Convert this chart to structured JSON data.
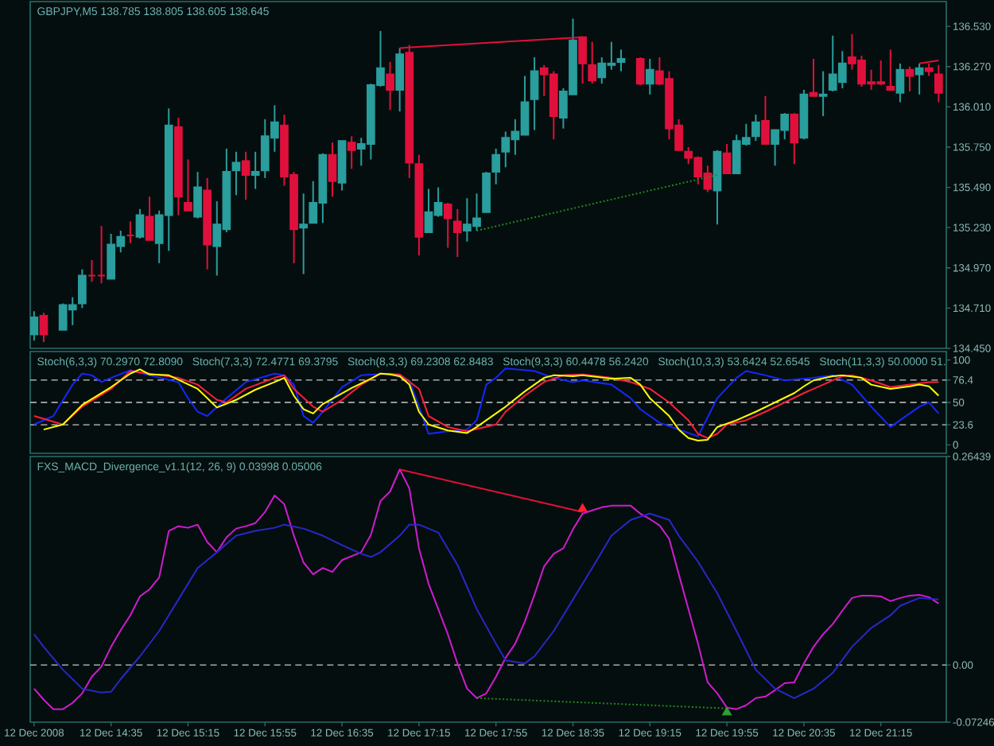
{
  "chart_data": [
    {
      "type": "candlestick",
      "title": "GBPJPY,M5 138.785 138.805 138.605 138.645",
      "x": [
        "2008-12-12T13:55",
        "2008-12-12T14:00",
        "2008-12-12T14:10",
        "2008-12-12T14:15",
        "2008-12-12T14:20",
        "2008-12-12T14:25",
        "2008-12-12T14:30",
        "2008-12-12T14:35",
        "2008-12-12T14:40",
        "2008-12-12T14:45",
        "2008-12-12T14:50",
        "2008-12-12T14:55",
        "2008-12-12T15:00",
        "2008-12-12T15:05",
        "2008-12-12T15:10",
        "2008-12-12T15:15",
        "2008-12-12T15:20",
        "2008-12-12T15:25",
        "2008-12-12T15:30",
        "2008-12-12T15:35",
        "2008-12-12T15:40",
        "2008-12-12T15:45",
        "2008-12-12T15:50",
        "2008-12-12T15:55",
        "2008-12-12T16:00",
        "2008-12-12T16:05",
        "2008-12-12T16:10",
        "2008-12-12T16:15",
        "2008-12-12T16:20",
        "2008-12-12T16:25",
        "2008-12-12T16:30",
        "2008-12-12T16:35",
        "2008-12-12T16:40",
        "2008-12-12T16:45",
        "2008-12-12T16:50",
        "2008-12-12T16:55",
        "2008-12-12T17:00",
        "2008-12-12T17:05",
        "2008-12-12T17:10",
        "2008-12-12T17:15",
        "2008-12-12T17:20",
        "2008-12-12T17:25",
        "2008-12-12T17:30",
        "2008-12-12T17:35",
        "2008-12-12T17:40",
        "2008-12-12T17:45",
        "2008-12-12T17:50",
        "2008-12-12T17:55",
        "2008-12-12T18:00",
        "2008-12-12T18:05",
        "2008-12-12T18:10",
        "2008-12-12T18:15",
        "2008-12-12T18:20",
        "2008-12-12T18:25",
        "2008-12-12T18:30",
        "2008-12-12T18:35",
        "2008-12-12T18:40",
        "2008-12-12T18:45",
        "2008-12-12T18:50",
        "2008-12-12T18:55",
        "2008-12-12T19:00",
        "2008-12-12T19:10",
        "2008-12-12T19:15",
        "2008-12-12T19:20",
        "2008-12-12T19:25",
        "2008-12-12T19:30",
        "2008-12-12T19:35",
        "2008-12-12T19:40",
        "2008-12-12T19:45",
        "2008-12-12T19:50",
        "2008-12-12T19:55",
        "2008-12-12T20:00",
        "2008-12-12T20:05",
        "2008-12-12T20:10",
        "2008-12-12T20:15",
        "2008-12-12T20:20",
        "2008-12-12T20:25",
        "2008-12-12T20:30",
        "2008-12-12T20:35",
        "2008-12-12T20:40",
        "2008-12-12T20:45",
        "2008-12-12T20:50",
        "2008-12-12T20:55",
        "2008-12-12T21:00",
        "2008-12-12T21:05",
        "2008-12-12T21:10",
        "2008-12-12T21:15",
        "2008-12-12T21:20",
        "2008-12-12T21:25",
        "2008-12-12T21:30",
        "2008-12-12T21:35",
        "2008-12-12T21:40",
        "2008-12-12T21:45"
      ],
      "ohlc": [
        [
          134.54,
          134.69,
          134.5,
          134.65
        ],
        [
          134.66,
          134.68,
          134.49,
          134.54
        ],
        [
          134.57,
          134.74,
          134.57,
          134.73
        ],
        [
          134.7,
          134.78,
          134.6,
          134.73
        ],
        [
          134.74,
          134.96,
          134.71,
          134.92
        ],
        [
          134.92,
          135.02,
          134.88,
          134.92
        ],
        [
          134.92,
          135.24,
          134.87,
          134.92
        ],
        [
          134.9,
          135.19,
          134.9,
          135.12
        ],
        [
          135.11,
          135.21,
          135.07,
          135.17
        ],
        [
          135.18,
          135.27,
          135.13,
          135.18
        ],
        [
          135.17,
          135.35,
          135.16,
          135.31
        ],
        [
          135.3,
          135.43,
          135.15,
          135.15
        ],
        [
          135.13,
          135.34,
          135.0,
          135.31
        ],
        [
          135.31,
          136.0,
          135.08,
          135.89
        ],
        [
          135.88,
          135.94,
          135.31,
          135.43
        ],
        [
          135.39,
          135.67,
          135.34,
          135.34
        ],
        [
          135.3,
          135.59,
          135.29,
          135.49
        ],
        [
          135.47,
          135.55,
          134.96,
          135.12
        ],
        [
          135.11,
          135.4,
          134.92,
          135.25
        ],
        [
          135.22,
          135.74,
          135.2,
          135.59
        ],
        [
          135.6,
          135.72,
          135.44,
          135.65
        ],
        [
          135.66,
          135.72,
          135.41,
          135.57
        ],
        [
          135.57,
          135.72,
          135.48,
          135.59
        ],
        [
          135.6,
          135.93,
          135.55,
          135.82
        ],
        [
          135.81,
          136.02,
          135.72,
          135.91
        ],
        [
          135.89,
          135.96,
          135.5,
          135.56
        ],
        [
          135.57,
          135.59,
          135.0,
          135.22
        ],
        [
          135.23,
          135.45,
          134.93,
          135.25
        ],
        [
          135.26,
          135.53,
          135.26,
          135.39
        ],
        [
          135.39,
          135.71,
          135.26,
          135.7
        ],
        [
          135.7,
          135.78,
          135.43,
          135.53
        ],
        [
          135.52,
          135.79,
          135.47,
          135.79
        ],
        [
          135.78,
          135.82,
          135.61,
          135.73
        ],
        [
          135.74,
          135.81,
          135.63,
          135.77
        ],
        [
          135.77,
          136.16,
          135.67,
          136.15
        ],
        [
          136.15,
          136.5,
          136.14,
          136.26
        ],
        [
          136.22,
          136.3,
          135.99,
          136.12
        ],
        [
          136.12,
          136.39,
          135.98,
          136.35
        ],
        [
          136.36,
          136.41,
          135.55,
          135.65
        ],
        [
          135.64,
          135.7,
          135.05,
          135.17
        ],
        [
          135.2,
          135.48,
          135.2,
          135.33
        ],
        [
          135.31,
          135.49,
          135.3,
          135.39
        ],
        [
          135.38,
          135.39,
          135.1,
          135.29
        ],
        [
          135.27,
          135.35,
          135.04,
          135.2
        ],
        [
          135.21,
          135.42,
          135.14,
          135.25
        ],
        [
          135.24,
          135.45,
          135.21,
          135.29
        ],
        [
          135.33,
          135.59,
          135.33,
          135.58
        ],
        [
          135.59,
          135.74,
          135.51,
          135.7
        ],
        [
          135.72,
          135.85,
          135.62,
          135.81
        ],
        [
          135.8,
          135.93,
          135.7,
          135.85
        ],
        [
          135.83,
          136.21,
          135.83,
          136.04
        ],
        [
          136.06,
          136.33,
          135.86,
          136.24
        ],
        [
          136.26,
          136.28,
          136.08,
          136.22
        ],
        [
          136.22,
          136.24,
          135.8,
          135.95
        ],
        [
          135.94,
          136.13,
          135.87,
          136.11
        ],
        [
          136.09,
          136.58,
          136.09,
          136.44
        ],
        [
          136.46,
          136.46,
          136.16,
          136.29
        ],
        [
          136.28,
          136.43,
          136.16,
          136.18
        ],
        [
          136.2,
          136.33,
          136.16,
          136.29
        ],
        [
          136.28,
          136.43,
          136.25,
          136.29
        ],
        [
          136.3,
          136.38,
          136.24,
          136.32
        ],
        [
          136.32,
          136.33,
          136.15,
          136.16
        ],
        [
          136.16,
          136.32,
          136.09,
          136.25
        ],
        [
          136.24,
          136.33,
          136.15,
          136.16
        ],
        [
          136.19,
          136.24,
          135.8,
          135.87
        ],
        [
          135.89,
          135.93,
          135.73,
          135.73
        ],
        [
          135.72,
          135.75,
          135.64,
          135.68
        ],
        [
          135.68,
          135.69,
          135.51,
          135.56
        ],
        [
          135.58,
          135.63,
          135.46,
          135.48
        ],
        [
          135.47,
          135.73,
          135.25,
          135.72
        ],
        [
          135.71,
          135.77,
          135.58,
          135.58
        ],
        [
          135.58,
          135.83,
          135.58,
          135.79
        ],
        [
          135.77,
          135.9,
          135.76,
          135.81
        ],
        [
          135.82,
          135.96,
          135.79,
          135.91
        ],
        [
          135.92,
          136.08,
          135.77,
          135.77
        ],
        [
          135.77,
          135.86,
          135.63,
          135.86
        ],
        [
          135.86,
          135.97,
          135.8,
          135.96
        ],
        [
          135.96,
          135.97,
          135.64,
          135.78
        ],
        [
          135.81,
          136.12,
          135.8,
          136.09
        ],
        [
          136.1,
          136.32,
          136.08,
          136.08
        ],
        [
          136.08,
          136.24,
          135.95,
          136.09
        ],
        [
          136.12,
          136.47,
          136.11,
          136.22
        ],
        [
          136.17,
          136.37,
          136.13,
          136.29
        ],
        [
          136.33,
          136.48,
          136.25,
          136.29
        ],
        [
          136.31,
          136.34,
          136.14,
          136.16
        ],
        [
          136.17,
          136.25,
          136.12,
          136.16
        ],
        [
          136.17,
          136.31,
          136.15,
          136.16
        ],
        [
          136.14,
          136.38,
          136.12,
          136.12
        ],
        [
          136.1,
          136.29,
          136.04,
          136.25
        ],
        [
          136.25,
          136.27,
          136.11,
          136.21
        ],
        [
          136.22,
          136.29,
          136.09,
          136.26
        ],
        [
          136.26,
          136.29,
          136.21,
          136.24
        ],
        [
          136.22,
          136.28,
          136.04,
          136.1
        ]
      ],
      "colors": [
        "#2a9d9d",
        "#e0103c",
        "#2a9d9d",
        "#2a9d9d",
        "#2a9d9d",
        "#e0103c",
        "#e0103c",
        "#2a9d9d",
        "#2a9d9d",
        "#e0103c",
        "#2a9d9d",
        "#e0103c",
        "#2a9d9d",
        "#2a9d9d",
        "#e0103c",
        "#e0103c",
        "#2a9d9d",
        "#e0103c",
        "#2a9d9d",
        "#2a9d9d",
        "#2a9d9d",
        "#e0103c",
        "#2a9d9d",
        "#2a9d9d",
        "#2a9d9d",
        "#e0103c",
        "#e0103c",
        "#2a9d9d",
        "#2a9d9d",
        "#2a9d9d",
        "#e0103c",
        "#2a9d9d",
        "#e0103c",
        "#2a9d9d",
        "#2a9d9d",
        "#2a9d9d",
        "#e0103c",
        "#2a9d9d",
        "#e0103c",
        "#e0103c",
        "#2a9d9d",
        "#2a9d9d",
        "#e0103c",
        "#e0103c",
        "#2a9d9d",
        "#2a9d9d",
        "#2a9d9d",
        "#2a9d9d",
        "#2a9d9d",
        "#2a9d9d",
        "#2a9d9d",
        "#2a9d9d",
        "#e0103c",
        "#e0103c",
        "#2a9d9d",
        "#2a9d9d",
        "#e0103c",
        "#e0103c",
        "#2a9d9d",
        "#2a9d9d",
        "#2a9d9d",
        "#e0103c",
        "#2a9d9d",
        "#e0103c",
        "#e0103c",
        "#e0103c",
        "#e0103c",
        "#e0103c",
        "#e0103c",
        "#2a9d9d",
        "#e0103c",
        "#2a9d9d",
        "#2a9d9d",
        "#2a9d9d",
        "#e0103c",
        "#2a9d9d",
        "#2a9d9d",
        "#e0103c",
        "#2a9d9d",
        "#e0103c",
        "#2a9d9d",
        "#2a9d9d",
        "#2a9d9d",
        "#e0103c",
        "#e0103c",
        "#e0103c",
        "#e0103c",
        "#e0103c",
        "#2a9d9d",
        "#e0103c",
        "#2a9d9d",
        "#e0103c",
        "#e0103c"
      ],
      "series": [
        {
          "type": "line",
          "x": [
            "2008-12-12T17:05",
            "2008-12-12T18:40"
          ],
          "values": [
            136.39,
            136.46
          ],
          "color": "#e0103c",
          "line_style": "solid"
        },
        {
          "type": "line",
          "x": [
            "2008-12-12T21:35",
            "2008-12-12T21:45"
          ],
          "values": [
            136.29,
            136.31
          ],
          "color": "#e0103c",
          "line_style": "solid"
        },
        {
          "type": "line",
          "x": [
            "2008-12-12T17:45",
            "2008-12-12T19:50"
          ],
          "values": [
            135.21,
            135.57
          ],
          "color": "#1e8a1e",
          "line_style": "dotted"
        }
      ],
      "xlim": [
        "2008-12-12T13:53",
        "2008-12-12T21:49"
      ],
      "ylim": [
        134.45,
        136.69
      ],
      "yticks": [
        {
          "value": 134.45,
          "label": "134.450"
        },
        {
          "value": 134.71,
          "label": "134.710"
        },
        {
          "value": 134.97,
          "label": "134.970"
        },
        {
          "value": 135.23,
          "label": "135.230"
        },
        {
          "value": 135.49,
          "label": "135.490"
        },
        {
          "value": 135.75,
          "label": "135.750"
        },
        {
          "value": 136.01,
          "label": "136.010"
        },
        {
          "value": 136.27,
          "label": "136.270"
        },
        {
          "value": 136.53,
          "label": "136.530"
        }
      ],
      "tick_labels": "y"
    },
    {
      "type": "line",
      "annotations": [
        "Stoch(6,3,3) 70.2970 72.8090",
        "Stoch(7,3,3) 72.4771 69.3795",
        "Stoch(8,3,3) 69.2308 62.8483",
        "Stoch(9,3,3) 60.4478 56.2420",
        "Stoch(10,3,3) 53.6424 52.6545",
        "Stoch(11,3,3) 50.0000 51."
      ],
      "series": [
        {
          "color": "#1428ff",
          "x": [
            "2008-12-12T13:55",
            "2008-12-12T14:05",
            "2008-12-12T14:15",
            "2008-12-12T14:20",
            "2008-12-12T14:25",
            "2008-12-12T14:30",
            "2008-12-12T14:35",
            "2008-12-12T14:45",
            "2008-12-12T14:55",
            "2008-12-12T15:10",
            "2008-12-12T15:15",
            "2008-12-12T15:20",
            "2008-12-12T15:25",
            "2008-12-12T15:35",
            "2008-12-12T15:45",
            "2008-12-12T16:00",
            "2008-12-12T16:05",
            "2008-12-12T16:10",
            "2008-12-12T16:15",
            "2008-12-12T16:20",
            "2008-12-12T16:25",
            "2008-12-12T16:35",
            "2008-12-12T16:45",
            "2008-12-12T17:00",
            "2008-12-12T17:10",
            "2008-12-12T17:15",
            "2008-12-12T17:20",
            "2008-12-12T17:30",
            "2008-12-12T17:40",
            "2008-12-12T17:45",
            "2008-12-12T17:50",
            "2008-12-12T17:55",
            "2008-12-12T18:00",
            "2008-12-12T18:15",
            "2008-12-12T18:25",
            "2008-12-12T18:35",
            "2008-12-12T18:40",
            "2008-12-12T18:55",
            "2008-12-12T19:05",
            "2008-12-12T19:10",
            "2008-12-12T19:20",
            "2008-12-12T19:30",
            "2008-12-12T19:40",
            "2008-12-12T19:50",
            "2008-12-12T20:00",
            "2008-12-12T20:05",
            "2008-12-12T20:15",
            "2008-12-12T20:25",
            "2008-12-12T20:40",
            "2008-12-12T20:50",
            "2008-12-12T21:00",
            "2008-12-12T21:10",
            "2008-12-12T21:20",
            "2008-12-12T21:25",
            "2008-12-12T21:35",
            "2008-12-12T21:40",
            "2008-12-12T21:45"
          ],
          "values": [
            24,
            34,
            71,
            84,
            82,
            74,
            79,
            88,
            82,
            74,
            55,
            39,
            34,
            55,
            74,
            84,
            82,
            71,
            34,
            26,
            39,
            68,
            82,
            84,
            76,
            45,
            13,
            16,
            18,
            29,
            71,
            79,
            90,
            87,
            79,
            74,
            76,
            71,
            55,
            42,
            26,
            18,
            10,
            55,
            79,
            87,
            82,
            76,
            79,
            82,
            71,
            45,
            21,
            29,
            45,
            50,
            37
          ]
        },
        {
          "color": "#ff1e3c",
          "x": [
            "2008-12-12T13:55",
            "2008-12-12T14:10",
            "2008-12-12T14:20",
            "2008-12-12T14:35",
            "2008-12-12T14:45",
            "2008-12-12T14:55",
            "2008-12-12T15:10",
            "2008-12-12T15:20",
            "2008-12-12T15:30",
            "2008-12-12T15:35",
            "2008-12-12T15:45",
            "2008-12-12T16:00",
            "2008-12-12T16:05",
            "2008-12-12T16:10",
            "2008-12-12T16:20",
            "2008-12-12T16:25",
            "2008-12-12T16:35",
            "2008-12-12T16:45",
            "2008-12-12T16:55",
            "2008-12-12T17:05",
            "2008-12-12T17:15",
            "2008-12-12T17:20",
            "2008-12-12T17:30",
            "2008-12-12T17:40",
            "2008-12-12T17:55",
            "2008-12-12T18:00",
            "2008-12-12T18:10",
            "2008-12-12T18:20",
            "2008-12-12T18:30",
            "2008-12-12T18:40",
            "2008-12-12T18:55",
            "2008-12-12T19:05",
            "2008-12-12T19:15",
            "2008-12-12T19:25",
            "2008-12-12T19:35",
            "2008-12-12T19:40",
            "2008-12-12T19:45",
            "2008-12-12T19:50",
            "2008-12-12T19:55",
            "2008-12-12T20:05",
            "2008-12-12T20:15",
            "2008-12-12T20:25",
            "2008-12-12T20:35",
            "2008-12-12T20:45",
            "2008-12-12T20:55",
            "2008-12-12T21:00",
            "2008-12-12T21:10",
            "2008-12-12T21:20",
            "2008-12-12T21:30",
            "2008-12-12T21:40",
            "2008-12-12T21:45"
          ],
          "values": [
            34,
            24,
            45,
            66,
            87,
            84,
            79,
            71,
            53,
            50,
            66,
            79,
            82,
            66,
            45,
            39,
            53,
            71,
            84,
            83,
            66,
            34,
            21,
            16,
            24,
            39,
            58,
            74,
            82,
            83,
            79,
            74,
            66,
            50,
            29,
            13,
            8,
            13,
            24,
            29,
            39,
            50,
            61,
            71,
            81,
            82,
            76,
            68,
            71,
            74,
            74
          ]
        },
        {
          "color": "#ffff00",
          "x": [
            "2008-12-12T14:00",
            "2008-12-12T14:10",
            "2008-12-12T14:20",
            "2008-12-12T14:35",
            "2008-12-12T14:45",
            "2008-12-12T14:50",
            "2008-12-12T14:55",
            "2008-12-12T15:05",
            "2008-12-12T15:20",
            "2008-12-12T15:30",
            "2008-12-12T15:40",
            "2008-12-12T15:50",
            "2008-12-12T16:00",
            "2008-12-12T16:05",
            "2008-12-12T16:10",
            "2008-12-12T16:15",
            "2008-12-12T16:20",
            "2008-12-12T16:25",
            "2008-12-12T16:40",
            "2008-12-12T16:50",
            "2008-12-12T16:55",
            "2008-12-12T17:00",
            "2008-12-12T17:05",
            "2008-12-12T17:10",
            "2008-12-12T17:15",
            "2008-12-12T17:20",
            "2008-12-12T17:30",
            "2008-12-12T17:40",
            "2008-12-12T17:45",
            "2008-12-12T18:00",
            "2008-12-12T18:10",
            "2008-12-12T18:20",
            "2008-12-12T18:25",
            "2008-12-12T18:35",
            "2008-12-12T18:40",
            "2008-12-12T18:55",
            "2008-12-12T19:05",
            "2008-12-12T19:10",
            "2008-12-12T19:15",
            "2008-12-12T19:25",
            "2008-12-12T19:30",
            "2008-12-12T19:35",
            "2008-12-12T19:40",
            "2008-12-12T19:45",
            "2008-12-12T19:50",
            "2008-12-12T20:00",
            "2008-12-12T20:10",
            "2008-12-12T20:20",
            "2008-12-12T20:30",
            "2008-12-12T20:35",
            "2008-12-12T20:40",
            "2008-12-12T20:50",
            "2008-12-12T20:55",
            "2008-12-12T21:05",
            "2008-12-12T21:10",
            "2008-12-12T21:20",
            "2008-12-12T21:30",
            "2008-12-12T21:35",
            "2008-12-12T21:40",
            "2008-12-12T21:45"
          ],
          "values": [
            18,
            24,
            47,
            68,
            84,
            89,
            83,
            82,
            66,
            44,
            53,
            65,
            74,
            79,
            58,
            42,
            37,
            48,
            67,
            78,
            84,
            83,
            81,
            71,
            39,
            24,
            17,
            14,
            21,
            45,
            63,
            79,
            82,
            81,
            82,
            78,
            79,
            71,
            55,
            34,
            18,
            8,
            5,
            6,
            21,
            29,
            39,
            50,
            61,
            69,
            76,
            81,
            82,
            79,
            71,
            66,
            69,
            71,
            69,
            58
          ]
        }
      ],
      "ref_lines": [
        {
          "axis": "y",
          "value": 76.4,
          "color": "#c8c8c8",
          "line_style": "dashed"
        },
        {
          "axis": "y",
          "value": 50,
          "color": "#c8c8c8",
          "line_style": "dashed"
        },
        {
          "axis": "y",
          "value": 23.6,
          "color": "#c8c8c8",
          "line_style": "dashed"
        }
      ],
      "xlim": [
        "2008-12-12T13:53",
        "2008-12-12T21:49"
      ],
      "ylim": [
        -10,
        110
      ],
      "yticks": [
        100,
        76.4,
        50,
        23.6,
        0
      ],
      "tick_labels": "y"
    },
    {
      "type": "line",
      "title": "FXS_MACD_Divergence_v1.1(12, 26, 9) 0.03998 0.05006",
      "x": [
        "2008-12-12T13:55",
        "2008-12-12T14:00",
        "2008-12-12T14:05",
        "2008-12-12T14:10",
        "2008-12-12T14:15",
        "2008-12-12T14:20",
        "2008-12-12T14:25",
        "2008-12-12T14:30",
        "2008-12-12T14:35",
        "2008-12-12T14:40",
        "2008-12-12T14:45",
        "2008-12-12T14:50",
        "2008-12-12T14:55",
        "2008-12-12T15:00",
        "2008-12-12T15:05",
        "2008-12-12T15:10",
        "2008-12-12T15:15",
        "2008-12-12T15:20",
        "2008-12-12T15:25",
        "2008-12-12T15:30",
        "2008-12-12T15:35",
        "2008-12-12T15:40",
        "2008-12-12T15:45",
        "2008-12-12T15:50",
        "2008-12-12T15:55",
        "2008-12-12T16:00",
        "2008-12-12T16:05",
        "2008-12-12T16:10",
        "2008-12-12T16:15",
        "2008-12-12T16:20",
        "2008-12-12T16:25",
        "2008-12-12T16:30",
        "2008-12-12T16:35",
        "2008-12-12T16:40",
        "2008-12-12T16:45",
        "2008-12-12T16:50",
        "2008-12-12T16:55",
        "2008-12-12T17:00",
        "2008-12-12T17:05",
        "2008-12-12T17:10",
        "2008-12-12T17:15",
        "2008-12-12T17:20",
        "2008-12-12T17:25",
        "2008-12-12T17:30",
        "2008-12-12T17:35",
        "2008-12-12T17:40",
        "2008-12-12T17:45",
        "2008-12-12T17:50",
        "2008-12-12T17:55",
        "2008-12-12T18:00",
        "2008-12-12T18:05",
        "2008-12-12T18:10",
        "2008-12-12T18:15",
        "2008-12-12T18:20",
        "2008-12-12T18:25",
        "2008-12-12T18:30",
        "2008-12-12T18:35",
        "2008-12-12T18:40",
        "2008-12-12T18:45",
        "2008-12-12T18:50",
        "2008-12-12T18:55",
        "2008-12-12T19:00",
        "2008-12-12T19:05",
        "2008-12-12T19:10",
        "2008-12-12T19:15",
        "2008-12-12T19:20",
        "2008-12-12T19:25",
        "2008-12-12T19:30",
        "2008-12-12T19:35",
        "2008-12-12T19:40",
        "2008-12-12T19:45",
        "2008-12-12T19:50",
        "2008-12-12T19:55",
        "2008-12-12T20:00",
        "2008-12-12T20:05",
        "2008-12-12T20:10",
        "2008-12-12T20:15",
        "2008-12-12T20:20",
        "2008-12-12T20:25",
        "2008-12-12T20:30",
        "2008-12-12T20:35",
        "2008-12-12T20:40",
        "2008-12-12T20:45",
        "2008-12-12T20:50",
        "2008-12-12T20:55",
        "2008-12-12T21:00",
        "2008-12-12T21:05",
        "2008-12-12T21:10",
        "2008-12-12T21:15",
        "2008-12-12T21:20",
        "2008-12-12T21:25",
        "2008-12-12T21:30",
        "2008-12-12T21:35",
        "2008-12-12T21:40",
        "2008-12-12T21:45"
      ],
      "series": [
        {
          "color": "#d01cd0",
          "values": [
            -0.03,
            -0.044,
            -0.056,
            -0.056,
            -0.048,
            -0.036,
            -0.015,
            -0.002,
            0.023,
            0.044,
            0.063,
            0.087,
            0.096,
            0.111,
            0.17,
            0.176,
            0.174,
            0.178,
            0.156,
            0.143,
            0.162,
            0.173,
            0.176,
            0.18,
            0.194,
            0.215,
            0.204,
            0.164,
            0.13,
            0.115,
            0.123,
            0.118,
            0.133,
            0.138,
            0.143,
            0.165,
            0.208,
            0.22,
            0.248,
            0.224,
            0.148,
            0.103,
            0.071,
            0.039,
            0.002,
            -0.03,
            -0.042,
            -0.036,
            -0.015,
            0.009,
            0.027,
            0.055,
            0.089,
            0.125,
            0.141,
            0.148,
            0.172,
            0.192,
            0.196,
            0.2,
            0.202,
            0.202,
            0.202,
            0.192,
            0.185,
            0.177,
            0.16,
            0.115,
            0.071,
            0.027,
            -0.022,
            -0.036,
            -0.054,
            -0.056,
            -0.051,
            -0.042,
            -0.04,
            -0.032,
            -0.023,
            -0.022,
            0.002,
            0.023,
            0.039,
            0.052,
            0.069,
            0.085,
            0.088,
            0.088,
            0.087,
            0.081,
            0.085,
            0.088,
            0.089,
            0.086,
            0.078
          ]
        },
        {
          "color": "#2828c8",
          "x": [
            "2008-12-12T13:55",
            "2008-12-12T14:00",
            "2008-12-12T14:10",
            "2008-12-12T14:20",
            "2008-12-12T14:30",
            "2008-12-12T14:35",
            "2008-12-12T14:40",
            "2008-12-12T14:50",
            "2008-12-12T15:00",
            "2008-12-12T15:10",
            "2008-12-12T15:20",
            "2008-12-12T15:30",
            "2008-12-12T15:40",
            "2008-12-12T15:50",
            "2008-12-12T16:00",
            "2008-12-12T16:05",
            "2008-12-12T16:15",
            "2008-12-12T16:25",
            "2008-12-12T16:35",
            "2008-12-12T16:45",
            "2008-12-12T16:50",
            "2008-12-12T16:55",
            "2008-12-12T17:05",
            "2008-12-12T17:10",
            "2008-12-12T17:15",
            "2008-12-12T17:25",
            "2008-12-12T17:35",
            "2008-12-12T17:45",
            "2008-12-12T17:55",
            "2008-12-12T18:00",
            "2008-12-12T18:10",
            "2008-12-12T18:15",
            "2008-12-12T18:25",
            "2008-12-12T18:35",
            "2008-12-12T18:45",
            "2008-12-12T18:55",
            "2008-12-12T19:05",
            "2008-12-12T19:15",
            "2008-12-12T19:25",
            "2008-12-12T19:30",
            "2008-12-12T19:40",
            "2008-12-12T19:50",
            "2008-12-12T20:00",
            "2008-12-12T20:10",
            "2008-12-12T20:20",
            "2008-12-12T20:30",
            "2008-12-12T20:40",
            "2008-12-12T20:50",
            "2008-12-12T21:00",
            "2008-12-12T21:10",
            "2008-12-12T21:20",
            "2008-12-12T21:25",
            "2008-12-12T21:35",
            "2008-12-12T21:45"
          ],
          "values": [
            0.039,
            0.023,
            -0.006,
            -0.03,
            -0.035,
            -0.034,
            -0.018,
            0.011,
            0.043,
            0.083,
            0.123,
            0.143,
            0.164,
            0.17,
            0.174,
            0.178,
            0.173,
            0.164,
            0.152,
            0.141,
            0.137,
            0.143,
            0.164,
            0.178,
            0.178,
            0.168,
            0.127,
            0.071,
            0.027,
            0.006,
            0.002,
            0.011,
            0.043,
            0.083,
            0.123,
            0.164,
            0.184,
            0.192,
            0.184,
            0.164,
            0.131,
            0.091,
            0.043,
            -0.006,
            -0.03,
            -0.042,
            -0.03,
            -0.01,
            0.023,
            0.047,
            0.063,
            0.075,
            0.085,
            0.083
          ]
        },
        {
          "x": [
            "2008-12-12T17:05",
            "2008-12-12T18:40"
          ],
          "values": [
            0.248,
            0.194
          ],
          "color": "#e0103c",
          "line_style": "solid"
        },
        {
          "x": [
            "2008-12-12T17:45",
            "2008-12-12T19:55"
          ],
          "values": [
            -0.042,
            -0.055
          ],
          "color": "#1e8a1e",
          "line_style": "dotted"
        },
        {
          "type": "scatter",
          "marker": "triangle",
          "x": [
            "2008-12-12T18:40"
          ],
          "values": [
            0.198
          ],
          "color": "#ff2030"
        },
        {
          "type": "scatter",
          "marker": "triangle",
          "x": [
            "2008-12-12T19:55"
          ],
          "values": [
            -0.06
          ],
          "color": "#30a030"
        }
      ],
      "ref_lines": [
        {
          "axis": "y",
          "value": 0,
          "color": "#c8c8c8",
          "line_style": "dashed"
        }
      ],
      "xlim": [
        "2008-12-12T13:53",
        "2008-12-12T21:49"
      ],
      "ylim": [
        -0.07246,
        0.26439
      ],
      "xticks": [
        {
          "value": "2008-12-12T13:55",
          "label": "12 Dec 2008"
        },
        {
          "value": "2008-12-12T14:35",
          "label": "12 Dec 14:35"
        },
        {
          "value": "2008-12-12T15:15",
          "label": "12 Dec 15:15"
        },
        {
          "value": "2008-12-12T15:55",
          "label": "12 Dec 15:55"
        },
        {
          "value": "2008-12-12T16:35",
          "label": "12 Dec 16:35"
        },
        {
          "value": "2008-12-12T17:15",
          "label": "12 Dec 17:15"
        },
        {
          "value": "2008-12-12T17:55",
          "label": "12 Dec 17:55"
        },
        {
          "value": "2008-12-12T18:35",
          "label": "12 Dec 18:35"
        },
        {
          "value": "2008-12-12T19:15",
          "label": "12 Dec 19:15"
        },
        {
          "value": "2008-12-12T19:55",
          "label": "12 Dec 19:55"
        },
        {
          "value": "2008-12-12T20:35",
          "label": "12 Dec 20:35"
        },
        {
          "value": "2008-12-12T21:15",
          "label": "12 Dec 21:15"
        }
      ],
      "yticks": [
        0.26439,
        {
          "value": 0,
          "label": "0.00"
        },
        -0.07246
      ]
    }
  ]
}
